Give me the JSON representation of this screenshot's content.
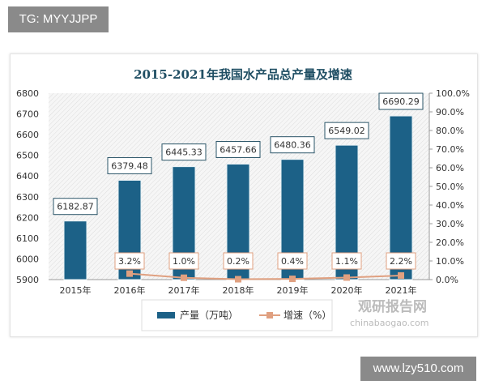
{
  "overlay": {
    "tg": "TG: MYYJJPP",
    "site": "www.lzy510.com"
  },
  "watermark": {
    "cn": "观研报告网",
    "en": "chinabaogao.com"
  },
  "chart_data": {
    "type": "bar+line",
    "title": "2015-2021年我国水产品总产量及增速",
    "categories": [
      "2015年",
      "2016年",
      "2017年",
      "2018年",
      "2019年",
      "2020年",
      "2021年"
    ],
    "series": [
      {
        "name": "产量（万吨）",
        "type": "bar",
        "axis": "left",
        "values": [
          6182.87,
          6379.48,
          6445.33,
          6457.66,
          6480.36,
          6549.02,
          6690.29
        ],
        "labels": [
          "6182.87",
          "6379.48",
          "6445.33",
          "6457.66",
          "6480.36",
          "6549.02",
          "6690.29"
        ],
        "color": "#1c6187"
      },
      {
        "name": "增速（%）",
        "type": "line",
        "axis": "right",
        "values": [
          null,
          3.2,
          1.0,
          0.2,
          0.4,
          1.1,
          2.2
        ],
        "labels": [
          "",
          "3.2%",
          "1.0%",
          "0.2%",
          "0.4%",
          "1.1%",
          "2.2%"
        ],
        "color": "#e0a080"
      }
    ],
    "ylim_left": [
      5900,
      6800
    ],
    "yticks_left": [
      "5900",
      "6000",
      "6100",
      "6200",
      "6300",
      "6400",
      "6500",
      "6600",
      "6700",
      "6800"
    ],
    "ylim_right": [
      0,
      100
    ],
    "yticks_right": [
      "0.0%",
      "10.0%",
      "20.0%",
      "30.0%",
      "40.0%",
      "50.0%",
      "60.0%",
      "70.0%",
      "80.0%",
      "90.0%",
      "100.0%"
    ],
    "legend": "bottom"
  }
}
